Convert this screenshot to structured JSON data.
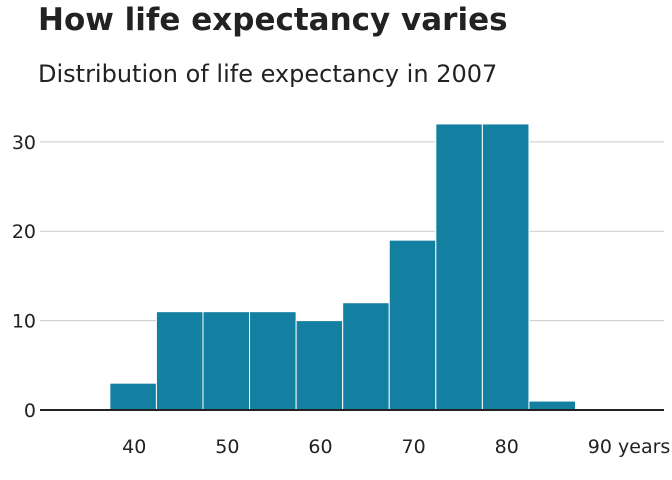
{
  "title": "How life expectancy varies",
  "subtitle": "Distribution of life expectancy in 2007",
  "chart_data": {
    "type": "bar",
    "title": "How life expectancy varies",
    "subtitle": "Distribution of life expectancy in 2007",
    "xlabel": "",
    "ylabel": "",
    "bin_width": 5,
    "bins": [
      {
        "start": 37.5,
        "end": 42.5,
        "count": 3
      },
      {
        "start": 42.5,
        "end": 47.5,
        "count": 11
      },
      {
        "start": 47.5,
        "end": 52.5,
        "count": 11
      },
      {
        "start": 52.5,
        "end": 57.5,
        "count": 11
      },
      {
        "start": 57.5,
        "end": 62.5,
        "count": 10
      },
      {
        "start": 62.5,
        "end": 67.5,
        "count": 12
      },
      {
        "start": 67.5,
        "end": 72.5,
        "count": 19
      },
      {
        "start": 72.5,
        "end": 77.5,
        "count": 32
      },
      {
        "start": 77.5,
        "end": 82.5,
        "count": 32
      },
      {
        "start": 82.5,
        "end": 87.5,
        "count": 1
      }
    ],
    "xlim": [
      30,
      97
    ],
    "ylim": [
      0,
      33
    ],
    "x_ticks": [
      {
        "value": 40,
        "label": "40"
      },
      {
        "value": 50,
        "label": "50"
      },
      {
        "value": 60,
        "label": "60"
      },
      {
        "value": 70,
        "label": "70"
      },
      {
        "value": 80,
        "label": "80"
      },
      {
        "value": 90,
        "label": "90 years"
      }
    ],
    "y_ticks": [
      {
        "value": 0,
        "label": "0"
      },
      {
        "value": 10,
        "label": "10"
      },
      {
        "value": 20,
        "label": "20"
      },
      {
        "value": 30,
        "label": "30"
      }
    ],
    "grid": true,
    "legend": "none",
    "bar_color": "#1380a1",
    "grid_color": "#cbcbcb",
    "axis_color": "#222222"
  }
}
